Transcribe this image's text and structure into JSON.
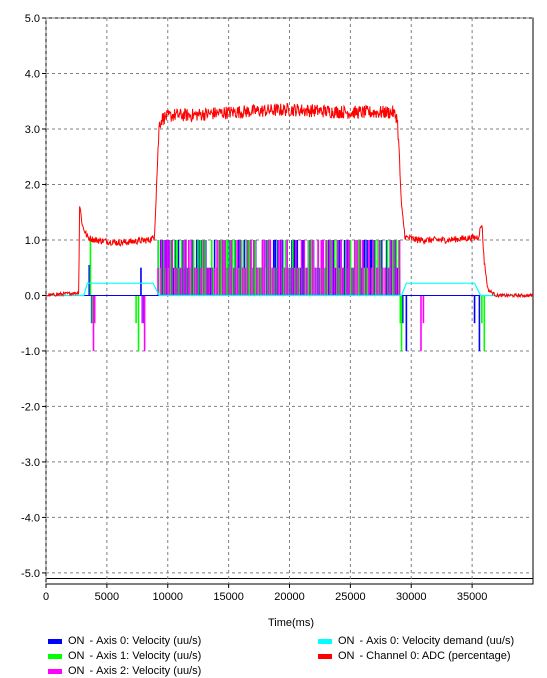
{
  "chart_data": {
    "type": "line",
    "title": "",
    "xlabel": "Time(ms)",
    "ylabel": "",
    "xlim": [
      0,
      40000
    ],
    "ylim": [
      -5.2,
      5.0
    ],
    "grid": true,
    "legend_position": "bottom",
    "x_ticks": [
      "0",
      "5000",
      "10000",
      "15000",
      "20000",
      "25000",
      "30000",
      "35000"
    ],
    "y_ticks": [
      "5.0",
      "4.0",
      "3.0",
      "2.0",
      "1.0",
      "0.0",
      "-1.0",
      "-2.0",
      "-3.0",
      "-4.0",
      "-5.0"
    ],
    "series": [
      {
        "name": "Channel 0: ADC (percentage)",
        "state": "ON",
        "color": "#ff0000",
        "style": "noisy",
        "x": [
          0,
          2700,
          2750,
          3000,
          3400,
          4000,
          6000,
          8500,
          8900,
          9300,
          9600,
          10500,
          12000,
          15000,
          20000,
          25000,
          28500,
          28850,
          29000,
          29200,
          29500,
          30500,
          33000,
          35500,
          35800,
          36000,
          36300,
          37000,
          40000
        ],
        "y": [
          0,
          0.05,
          1.65,
          1.25,
          1.05,
          1.0,
          0.95,
          1.0,
          1.05,
          3.1,
          3.2,
          3.25,
          3.25,
          3.3,
          3.35,
          3.3,
          3.3,
          3.2,
          2.6,
          1.6,
          1.05,
          1.0,
          1.0,
          1.05,
          1.3,
          0.6,
          0.1,
          0,
          0
        ]
      },
      {
        "name": "Axis 0: Velocity demand (uu/s)",
        "state": "ON",
        "color": "#00ffff",
        "style": "line",
        "x": [
          0,
          3100,
          3400,
          8800,
          9300,
          29200,
          29600,
          35200,
          35700,
          40000
        ],
        "y": [
          0,
          0,
          0.22,
          0.22,
          0,
          0,
          0.22,
          0.22,
          0,
          0
        ]
      },
      {
        "name": "Axis 0: Velocity (uu/s)",
        "state": "ON",
        "color": "#0000ff",
        "style": "spikes",
        "x": [
          3550,
          3750,
          7800,
          8050,
          29300,
          29600,
          35200,
          35600
        ],
        "y": [
          0.55,
          -0.5,
          0.5,
          -0.5,
          -0.5,
          -1.0,
          -0.5,
          -1.0
        ],
        "dense_region": [
          9200,
          29000
        ]
      },
      {
        "name": "Axis 1: Velocity (uu/s)",
        "state": "ON",
        "color": "#00ff00",
        "style": "spikes",
        "x": [
          3650,
          3800,
          7400,
          7600,
          29100,
          29200,
          35800,
          36000
        ],
        "y": [
          1.0,
          -0.5,
          -0.5,
          -1.0,
          -0.5,
          -1.0,
          -0.5,
          -1.0
        ],
        "dense_region": [
          9200,
          29000
        ]
      },
      {
        "name": "Axis 2: Velocity (uu/s)",
        "state": "ON",
        "color": "#ff00ff",
        "style": "spikes",
        "x": [
          3900,
          4000,
          7900,
          8100,
          30800,
          31000
        ],
        "y": [
          -1.0,
          -0.5,
          -0.5,
          -1.0,
          -1.0,
          -0.5
        ],
        "dense_region": [
          9200,
          29000
        ]
      }
    ]
  },
  "legend": {
    "entries": [
      {
        "state": "ON",
        "separator": "-",
        "label": "Axis 0: Velocity (uu/s)",
        "color": "#0000ff"
      },
      {
        "state": "ON",
        "separator": "-",
        "label": "Axis 1: Velocity (uu/s)",
        "color": "#00ff00"
      },
      {
        "state": "ON",
        "separator": "-",
        "label": "Axis 2: Velocity (uu/s)",
        "color": "#ff00ff"
      },
      {
        "state": "ON",
        "separator": "-",
        "label": "Axis 0: Velocity demand (uu/s)",
        "color": "#00ffff"
      },
      {
        "state": "ON",
        "separator": "-",
        "label": "Channel 0: ADC (percentage)",
        "color": "#ff0000"
      }
    ]
  }
}
